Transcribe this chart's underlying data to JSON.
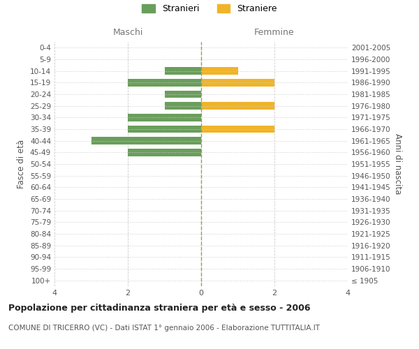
{
  "age_groups": [
    "100+",
    "95-99",
    "90-94",
    "85-89",
    "80-84",
    "75-79",
    "70-74",
    "65-69",
    "60-64",
    "55-59",
    "50-54",
    "45-49",
    "40-44",
    "35-39",
    "30-34",
    "25-29",
    "20-24",
    "15-19",
    "10-14",
    "5-9",
    "0-4"
  ],
  "birth_years": [
    "≤ 1905",
    "1906-1910",
    "1911-1915",
    "1916-1920",
    "1921-1925",
    "1926-1930",
    "1931-1935",
    "1936-1940",
    "1941-1945",
    "1946-1950",
    "1951-1955",
    "1956-1960",
    "1961-1965",
    "1966-1970",
    "1971-1975",
    "1976-1980",
    "1981-1985",
    "1986-1990",
    "1991-1995",
    "1996-2000",
    "2001-2005"
  ],
  "maschi_stranieri": [
    0,
    0,
    0,
    0,
    0,
    0,
    0,
    0,
    0,
    0,
    0,
    2,
    3,
    2,
    2,
    1,
    1,
    2,
    1,
    0,
    0
  ],
  "femmine_straniere": [
    0,
    0,
    0,
    0,
    0,
    0,
    0,
    0,
    0,
    0,
    0,
    0,
    0,
    2,
    0,
    2,
    0,
    2,
    1,
    0,
    0
  ],
  "color_maschi": "#6a9e5b",
  "color_femmine": "#f0b429",
  "title_main": "Popolazione per cittadinanza straniera per età e sesso - 2006",
  "title_sub": "COMUNE DI TRICERRO (VC) - Dati ISTAT 1° gennaio 2006 - Elaborazione TUTTITALIA.IT",
  "label_maschi": "Maschi",
  "label_femmine": "Femmine",
  "ylabel_left": "Fasce di età",
  "ylabel_right": "Anni di nascita",
  "legend_stranieri": "Stranieri",
  "legend_straniere": "Straniere",
  "xlim": 4,
  "background_color": "#ffffff",
  "grid_color": "#cccccc",
  "grid_color_x": "#cccccc",
  "zero_line_color": "#999966"
}
